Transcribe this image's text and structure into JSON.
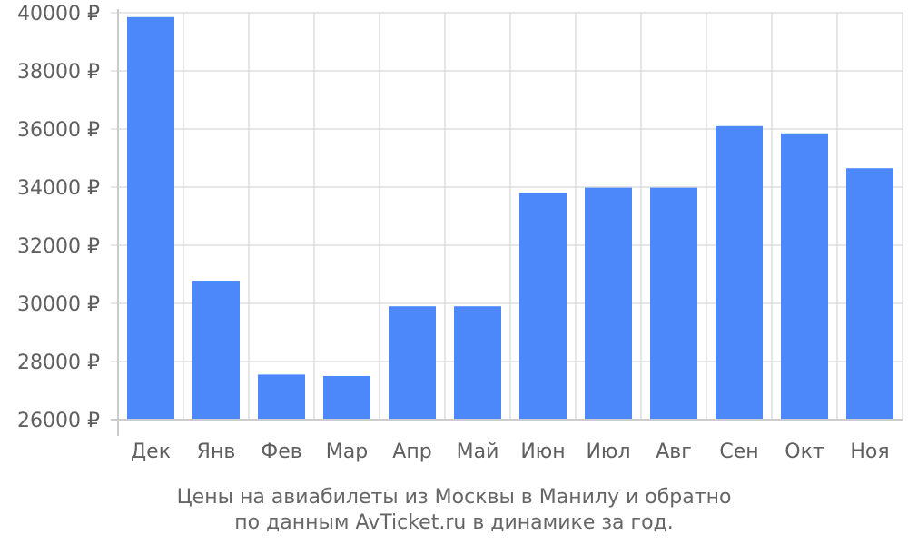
{
  "chart_data": {
    "type": "bar",
    "categories": [
      "Дек",
      "Янв",
      "Фев",
      "Мар",
      "Апр",
      "Май",
      "Июн",
      "Июл",
      "Авг",
      "Сен",
      "Окт",
      "Ноя"
    ],
    "values": [
      39850,
      30780,
      27550,
      27500,
      29900,
      29900,
      33800,
      33980,
      33980,
      36100,
      35850,
      34650
    ],
    "ylim": [
      26000,
      40000
    ],
    "yticks": [
      26000,
      28000,
      30000,
      32000,
      34000,
      36000,
      38000,
      40000
    ],
    "ytick_labels": [
      "26000 ₽",
      "28000 ₽",
      "30000 ₽",
      "32000 ₽",
      "34000 ₽",
      "36000 ₽",
      "38000 ₽",
      "40000 ₽"
    ],
    "caption_lines": [
      "Цены на авиабилеты из Москвы в Манилу и обратно",
      "по данным AvTicket.ru в динамике за год."
    ],
    "grid": true,
    "bar_color": "#4d88fa",
    "grid_color": "#dddddd"
  }
}
